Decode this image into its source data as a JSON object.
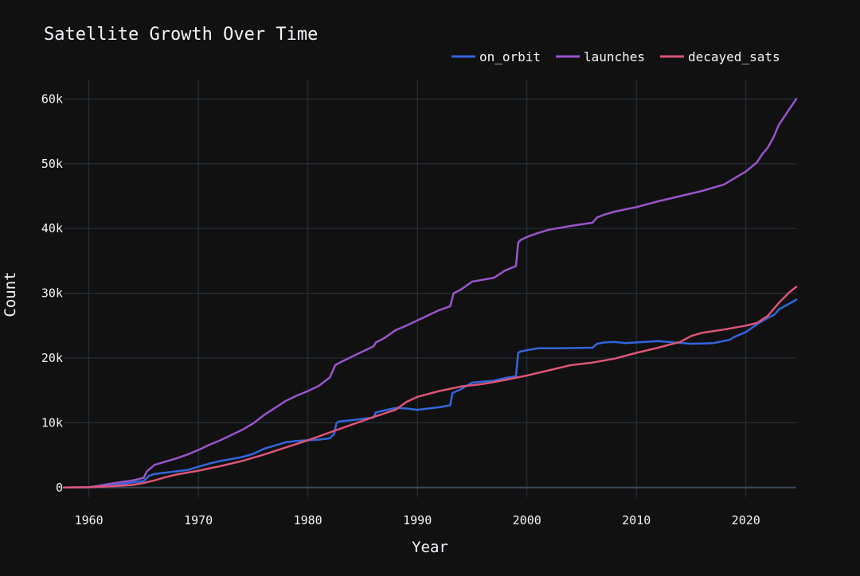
{
  "chart_data": {
    "type": "line",
    "title": "Satellite Growth Over Time",
    "xlabel": "Year",
    "ylabel": "Count",
    "xlim": [
      1957.7,
      2024.6
    ],
    "ylim": [
      -1500,
      63000
    ],
    "x_ticks": [
      1960,
      1970,
      1980,
      1990,
      2000,
      2010,
      2020
    ],
    "y_ticks": [
      0,
      10000,
      20000,
      30000,
      40000,
      50000,
      60000
    ],
    "y_tick_labels": [
      "0",
      "10k",
      "20k",
      "30k",
      "40k",
      "50k",
      "60k"
    ],
    "grid": true,
    "legend_position": "top-right",
    "background": "#111111",
    "grid_color": "#283442",
    "text_color": "#f2f5fa",
    "series": [
      {
        "name": "on_orbit",
        "color": "#3366dd",
        "x": [
          1957.7,
          1960,
          1961,
          1962,
          1963,
          1964,
          1965,
          1965.5,
          1966,
          1967,
          1968,
          1969,
          1970,
          1971,
          1972,
          1973,
          1974,
          1975,
          1976,
          1977,
          1978,
          1979,
          1980,
          1981,
          1982,
          1982.4,
          1982.6,
          1982.8,
          1984,
          1986,
          1986.2,
          1987,
          1988,
          1989,
          1990,
          1991,
          1992,
          1993,
          1993.2,
          1994,
          1995,
          1997,
          1998,
          1999,
          1999.2,
          1999.4,
          2000,
          2001,
          2003,
          2006,
          2006.4,
          2007,
          2008,
          2009,
          2012,
          2015,
          2017,
          2018.5,
          2019,
          2020,
          2021,
          2022,
          2022.6,
          2023,
          2024.6
        ],
        "y": [
          0,
          30,
          100,
          300,
          550,
          800,
          1000,
          1800,
          2100,
          2300,
          2500,
          2700,
          3200,
          3700,
          4100,
          4400,
          4700,
          5200,
          6000,
          6500,
          7000,
          7200,
          7300,
          7400,
          7600,
          8300,
          9900,
          10200,
          10400,
          10800,
          11600,
          11900,
          12300,
          12200,
          12000,
          12200,
          12400,
          12700,
          14600,
          15200,
          16200,
          16500,
          16900,
          17200,
          20800,
          21000,
          21200,
          21500,
          21500,
          21600,
          22200,
          22400,
          22500,
          22300,
          22600,
          22200,
          22300,
          22800,
          23300,
          24000,
          25200,
          26200,
          26700,
          27500,
          29000
        ]
      },
      {
        "name": "launches",
        "color": "#9955cc",
        "x": [
          1957.7,
          1960,
          1961,
          1962,
          1963,
          1964,
          1965,
          1965.3,
          1966,
          1967,
          1968,
          1969,
          1970,
          1971,
          1972,
          1973,
          1974,
          1975,
          1976,
          1977,
          1978,
          1979,
          1980,
          1981,
          1982,
          1982.5,
          1982.7,
          1984,
          1985,
          1986,
          1986.2,
          1987,
          1988,
          1989,
          1990,
          1991,
          1992,
          1993,
          1993.3,
          1994,
          1995,
          1997,
          1998,
          1999,
          1999.2,
          1999.4,
          2000,
          2001,
          2002,
          2004,
          2006,
          2006.4,
          2007,
          2008,
          2010,
          2012,
          2014,
          2016,
          2018,
          2019,
          2020,
          2021,
          2021.5,
          2022,
          2022.5,
          2023,
          2024,
          2024.6
        ],
        "y": [
          0,
          50,
          300,
          600,
          850,
          1100,
          1500,
          2500,
          3500,
          4000,
          4500,
          5100,
          5800,
          6600,
          7300,
          8100,
          8900,
          9900,
          11200,
          12300,
          13400,
          14200,
          14900,
          15700,
          17000,
          18900,
          19100,
          20200,
          21000,
          21800,
          22400,
          23100,
          24300,
          25000,
          25800,
          26600,
          27400,
          28000,
          30000,
          30600,
          31800,
          32400,
          33500,
          34200,
          37800,
          38200,
          38700,
          39300,
          39800,
          40400,
          40900,
          41700,
          42100,
          42600,
          43300,
          44200,
          45000,
          45800,
          46800,
          47800,
          48800,
          50200,
          51500,
          52500,
          54000,
          56000,
          58500,
          60000
        ]
      },
      {
        "name": "decayed_sats",
        "color": "#dd5577",
        "x": [
          1957.7,
          1960,
          1962,
          1964,
          1965,
          1966,
          1967,
          1968,
          1970,
          1972,
          1974,
          1976,
          1978,
          1980,
          1982,
          1984,
          1986,
          1988,
          1989,
          1990,
          1992,
          1994,
          1996,
          1998,
          2000,
          2002,
          2004,
          2006,
          2008,
          2010,
          2012,
          2014,
          2015,
          2016,
          2018,
          2020,
          2021,
          2022,
          2023,
          2024,
          2024.6
        ],
        "y": [
          0,
          50,
          200,
          400,
          700,
          1100,
          1600,
          2000,
          2600,
          3300,
          4100,
          5100,
          6200,
          7300,
          8500,
          9700,
          10900,
          12000,
          13200,
          14000,
          14900,
          15600,
          16000,
          16600,
          17300,
          18100,
          18900,
          19300,
          19900,
          20800,
          21600,
          22500,
          23400,
          23900,
          24400,
          25000,
          25400,
          26500,
          28500,
          30200,
          31000
        ]
      }
    ]
  }
}
